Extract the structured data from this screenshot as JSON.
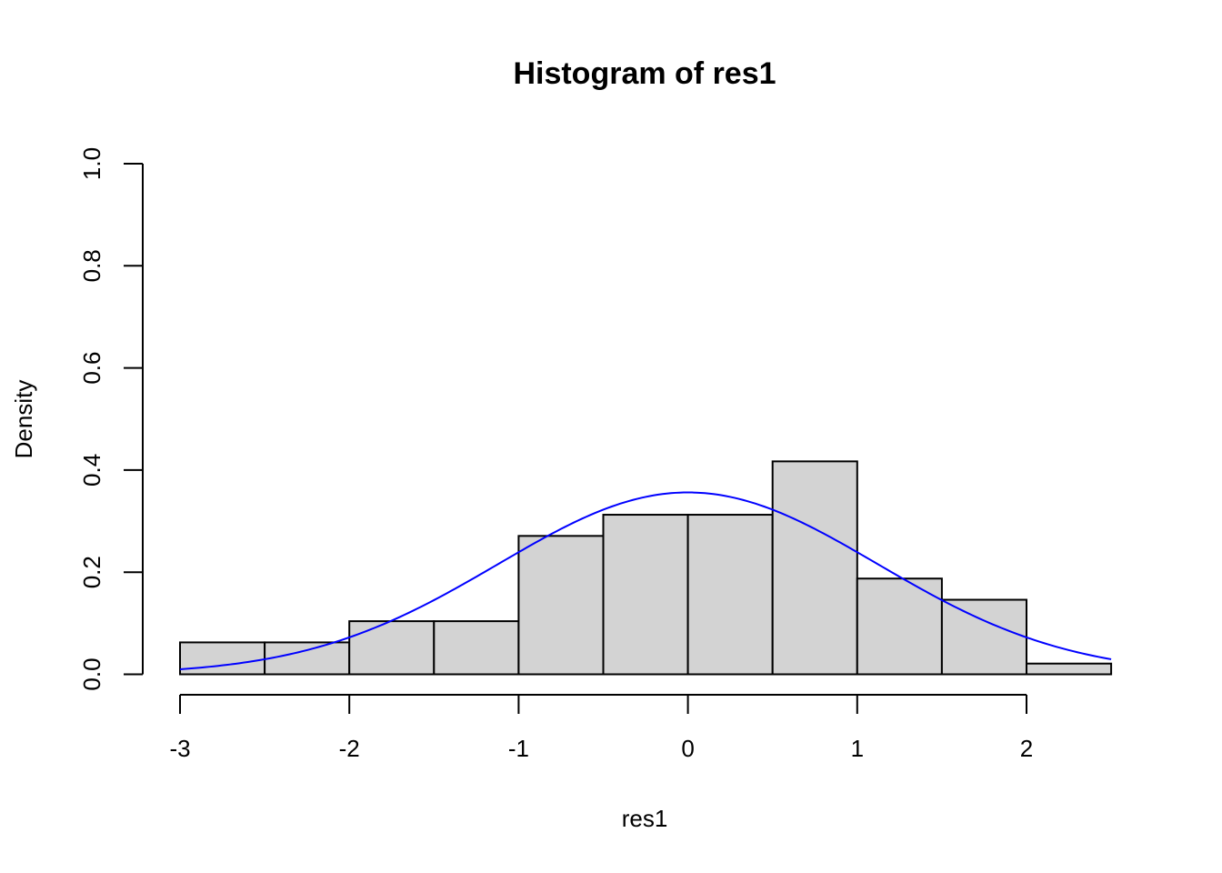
{
  "chart_data": {
    "type": "bar",
    "subtype": "histogram",
    "title": "Histogram of res1",
    "xlabel": "res1",
    "ylabel": "Density",
    "xlim": [
      -3,
      2.5
    ],
    "ylim": [
      0,
      1
    ],
    "x_ticks": [
      "-3",
      "-2",
      "-1",
      "0",
      "1",
      "2"
    ],
    "y_ticks": [
      "0.0",
      "0.2",
      "0.4",
      "0.6",
      "0.8",
      "1.0"
    ],
    "bins": [
      {
        "from": -3.0,
        "to": -2.5,
        "density": 0.0625
      },
      {
        "from": -2.5,
        "to": -2.0,
        "density": 0.0625
      },
      {
        "from": -2.0,
        "to": -1.5,
        "density": 0.104
      },
      {
        "from": -1.5,
        "to": -1.0,
        "density": 0.104
      },
      {
        "from": -1.0,
        "to": -0.5,
        "density": 0.271
      },
      {
        "from": -0.5,
        "to": 0.0,
        "density": 0.3125
      },
      {
        "from": 0.0,
        "to": 0.5,
        "density": 0.3125
      },
      {
        "from": 0.5,
        "to": 1.0,
        "density": 0.417
      },
      {
        "from": 1.0,
        "to": 1.5,
        "density": 0.1875
      },
      {
        "from": 1.5,
        "to": 2.0,
        "density": 0.146
      },
      {
        "from": 2.0,
        "to": 2.5,
        "density": 0.021
      }
    ],
    "overlay_curve": {
      "type": "normal-density",
      "mean": 0,
      "sd": 1.12,
      "color": "#0000ff"
    },
    "bar_fill": "#d3d3d3",
    "bar_stroke": "#000000",
    "grid": false
  }
}
